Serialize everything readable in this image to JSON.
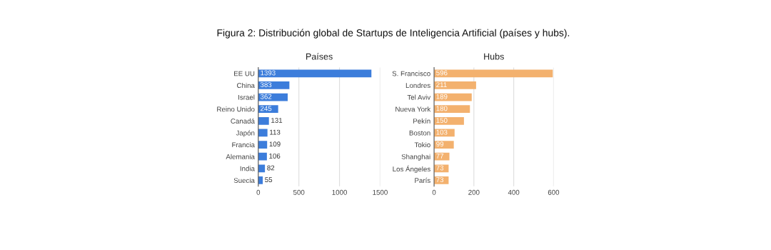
{
  "chart_data": [
    {
      "type": "bar",
      "orientation": "horizontal",
      "title": "Países",
      "annotations": [
        "Figura 2: Distribución global de Startups de Inteligencia Artificial (países y hubs)."
      ],
      "categories": [
        "EE UU",
        "China",
        "Israel",
        "Reino Unido",
        "Canadá",
        "Japón",
        "Francia",
        "Alemania",
        "India",
        "Suecia"
      ],
      "values": [
        1393,
        383,
        362,
        245,
        131,
        113,
        109,
        106,
        82,
        55
      ],
      "color": "#3c7ddb",
      "xlim": [
        0,
        1500
      ],
      "xticks": [
        0,
        500,
        1000,
        1500
      ],
      "grid": "x",
      "data_labels": true
    },
    {
      "type": "bar",
      "orientation": "horizontal",
      "title": "Hubs",
      "categories": [
        "S. Francisco",
        "Londres",
        "Tel Aviv",
        "Nueva York",
        "Pekín",
        "Boston",
        "Tokio",
        "Shanghai",
        "Los Ángeles",
        "París"
      ],
      "values": [
        596,
        211,
        189,
        180,
        150,
        103,
        99,
        77,
        73,
        73
      ],
      "color": "#f3b16e",
      "xlim": [
        0,
        600
      ],
      "xticks": [
        0,
        200,
        400,
        600
      ],
      "grid": "x",
      "data_labels": true
    }
  ]
}
